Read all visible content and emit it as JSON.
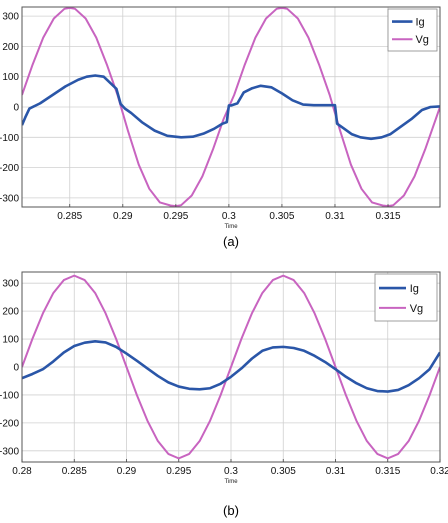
{
  "chart_data": [
    {
      "type": "line",
      "caption": "(a)",
      "xlabel": "Time",
      "ylabel": "",
      "xlim": [
        0.2805,
        0.3199
      ],
      "ylim": [
        -330,
        330
      ],
      "xticks": [
        0.285,
        0.29,
        0.295,
        0.3,
        0.305,
        0.31,
        0.315
      ],
      "xtick_labels": [
        "0.285",
        "0.29",
        "0.295",
        "0.3",
        "0.305",
        "0.31",
        "0.315"
      ],
      "yticks": [
        -300,
        -200,
        -100,
        0,
        100,
        200,
        300
      ],
      "ytick_labels": [
        "-300",
        "-200",
        "-100",
        "0",
        "100",
        "200",
        "300"
      ],
      "grid": true,
      "legend_position": "top-right",
      "colors": {
        "Ig": "#2a56a8",
        "Vg": "#c864c0",
        "grid": "#d0d0d0",
        "frame": "#555555"
      },
      "series": [
        {
          "name": "Ig",
          "x": [
            0.2805,
            0.2808,
            0.2812,
            0.2822,
            0.2834,
            0.2846,
            0.2858,
            0.2866,
            0.2874,
            0.2882,
            0.2894,
            0.2898,
            0.2902,
            0.2908,
            0.2918,
            0.293,
            0.2942,
            0.2955,
            0.2966,
            0.2976,
            0.2986,
            0.2994,
            0.2998,
            0.3,
            0.3002,
            0.3008,
            0.3014,
            0.3022,
            0.303,
            0.304,
            0.305,
            0.306,
            0.307,
            0.308,
            0.309,
            0.3098,
            0.31,
            0.3102,
            0.3108,
            0.3116,
            0.3124,
            0.3134,
            0.3144,
            0.3152,
            0.3162,
            0.3172,
            0.3182,
            0.319,
            0.3199
          ],
          "values": [
            -60,
            -35,
            -5,
            12,
            40,
            68,
            90,
            100,
            104,
            100,
            60,
            10,
            -5,
            -20,
            -50,
            -78,
            -95,
            -100,
            -98,
            -88,
            -72,
            -55,
            -50,
            5,
            5,
            12,
            48,
            62,
            70,
            65,
            45,
            22,
            8,
            6,
            6,
            6,
            6,
            -55,
            -70,
            -90,
            -100,
            -105,
            -100,
            -90,
            -65,
            -40,
            -10,
            0,
            2
          ]
        },
        {
          "name": "Vg",
          "x": [
            0.2805,
            0.2815,
            0.2825,
            0.2835,
            0.2845,
            0.285,
            0.2855,
            0.2865,
            0.2875,
            0.2885,
            0.2895,
            0.29,
            0.2905,
            0.2915,
            0.2925,
            0.2935,
            0.2945,
            0.295,
            0.2955,
            0.2965,
            0.2975,
            0.2985,
            0.2995,
            0.3,
            0.3005,
            0.3015,
            0.3025,
            0.3035,
            0.3045,
            0.305,
            0.3055,
            0.3065,
            0.3075,
            0.3085,
            0.3095,
            0.31,
            0.3105,
            0.3115,
            0.3125,
            0.3135,
            0.3145,
            0.315,
            0.3155,
            0.3165,
            0.3175,
            0.3185,
            0.3195,
            0.3199
          ],
          "values": [
            40,
            140,
            229,
            292,
            324,
            327,
            324,
            292,
            229,
            140,
            40,
            -20,
            -80,
            -190,
            -270,
            -315,
            -325,
            -327,
            -324,
            -292,
            -229,
            -140,
            -40,
            0,
            40,
            140,
            229,
            292,
            324,
            327,
            324,
            292,
            229,
            140,
            40,
            -20,
            -80,
            -190,
            -270,
            -315,
            -325,
            -327,
            -324,
            -292,
            -229,
            -140,
            -40,
            0
          ]
        }
      ]
    },
    {
      "type": "line",
      "caption": "(b)",
      "xlabel": "Time",
      "ylabel": "",
      "xlim": [
        0.28,
        0.32
      ],
      "ylim": [
        -340,
        340
      ],
      "xticks": [
        0.28,
        0.285,
        0.29,
        0.295,
        0.3,
        0.305,
        0.31,
        0.315,
        0.32
      ],
      "xtick_labels": [
        "0.28",
        "0.285",
        "0.29",
        "0.295",
        "0.3",
        "0.305",
        "0.31",
        "0.315",
        "0.32"
      ],
      "yticks": [
        -300,
        -200,
        -100,
        0,
        100,
        200,
        300
      ],
      "ytick_labels": [
        "-300",
        "-200",
        "-100",
        "0",
        "100",
        "200",
        "300"
      ],
      "grid": true,
      "legend_position": "top-right",
      "colors": {
        "Ig": "#2a56a8",
        "Vg": "#c864c0",
        "grid": "#d0d0d0",
        "frame": "#555555"
      },
      "series": [
        {
          "name": "Ig",
          "x": [
            0.28,
            0.281,
            0.282,
            0.283,
            0.284,
            0.285,
            0.286,
            0.287,
            0.288,
            0.289,
            0.29,
            0.291,
            0.292,
            0.293,
            0.294,
            0.295,
            0.296,
            0.297,
            0.298,
            0.299,
            0.3,
            0.301,
            0.302,
            0.303,
            0.304,
            0.305,
            0.306,
            0.307,
            0.308,
            0.309,
            0.31,
            0.311,
            0.312,
            0.313,
            0.314,
            0.315,
            0.316,
            0.317,
            0.318,
            0.319,
            0.32
          ],
          "values": [
            -40,
            -25,
            -8,
            20,
            52,
            75,
            87,
            92,
            88,
            72,
            48,
            22,
            -5,
            -32,
            -55,
            -70,
            -78,
            -80,
            -76,
            -60,
            -35,
            -5,
            30,
            58,
            70,
            72,
            68,
            58,
            40,
            18,
            -8,
            -35,
            -58,
            -76,
            -86,
            -88,
            -82,
            -65,
            -40,
            -8,
            52
          ]
        },
        {
          "name": "Vg",
          "x": [
            0.28,
            0.281,
            0.282,
            0.283,
            0.284,
            0.285,
            0.286,
            0.287,
            0.288,
            0.289,
            0.29,
            0.291,
            0.292,
            0.293,
            0.294,
            0.295,
            0.296,
            0.297,
            0.298,
            0.299,
            0.3,
            0.301,
            0.302,
            0.303,
            0.304,
            0.305,
            0.306,
            0.307,
            0.308,
            0.309,
            0.31,
            0.311,
            0.312,
            0.313,
            0.314,
            0.315,
            0.316,
            0.317,
            0.318,
            0.319,
            0.32
          ],
          "values": [
            0,
            101,
            192,
            265,
            311,
            327,
            311,
            265,
            192,
            101,
            0,
            -101,
            -192,
            -265,
            -311,
            -327,
            -311,
            -265,
            -192,
            -101,
            0,
            101,
            192,
            265,
            311,
            327,
            311,
            265,
            192,
            101,
            0,
            -101,
            -192,
            -265,
            -311,
            -327,
            -311,
            -265,
            -192,
            -101,
            0
          ]
        }
      ]
    }
  ]
}
